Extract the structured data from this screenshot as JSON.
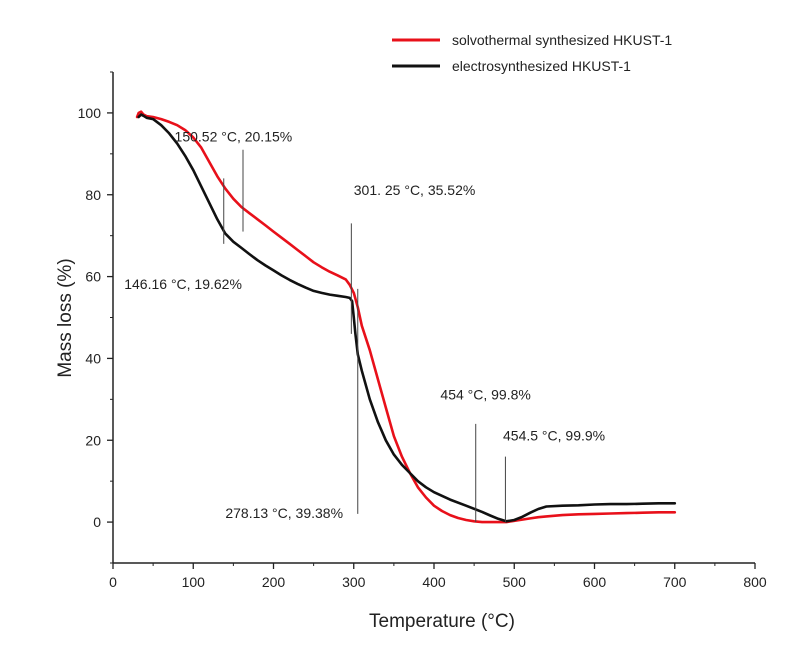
{
  "chart_data": {
    "type": "line",
    "xlabel": "Temperature  (°C)",
    "ylabel": "Mass loss (%)",
    "xlim": [
      0,
      800
    ],
    "ylim": [
      -10,
      110
    ],
    "xticks": [
      0,
      100,
      200,
      300,
      400,
      500,
      600,
      700,
      800
    ],
    "yticks": [
      0,
      20,
      40,
      60,
      80,
      100
    ],
    "grid": false,
    "legend_position": "top-right",
    "series": [
      {
        "name": "solvothermal synthesized HKUST-1",
        "color": "#e8101a",
        "points": [
          [
            30,
            99
          ],
          [
            32,
            100
          ],
          [
            35,
            100.3
          ],
          [
            38,
            99.6
          ],
          [
            42,
            99.2
          ],
          [
            50,
            99
          ],
          [
            60,
            98.5
          ],
          [
            70,
            97.8
          ],
          [
            80,
            97
          ],
          [
            90,
            95.8
          ],
          [
            100,
            94
          ],
          [
            110,
            91.5
          ],
          [
            120,
            88
          ],
          [
            130,
            84.5
          ],
          [
            140,
            81.5
          ],
          [
            150,
            79
          ],
          [
            160,
            77
          ],
          [
            170,
            75.5
          ],
          [
            180,
            74
          ],
          [
            190,
            72.5
          ],
          [
            200,
            71
          ],
          [
            210,
            69.5
          ],
          [
            220,
            68
          ],
          [
            230,
            66.5
          ],
          [
            240,
            65
          ],
          [
            250,
            63.5
          ],
          [
            260,
            62.3
          ],
          [
            270,
            61.2
          ],
          [
            280,
            60.3
          ],
          [
            290,
            59.3
          ],
          [
            295,
            58
          ],
          [
            300,
            56
          ],
          [
            305,
            52.5
          ],
          [
            310,
            48
          ],
          [
            320,
            42
          ],
          [
            330,
            35
          ],
          [
            340,
            28
          ],
          [
            350,
            21
          ],
          [
            360,
            16
          ],
          [
            370,
            12
          ],
          [
            380,
            8.5
          ],
          [
            390,
            6
          ],
          [
            400,
            4
          ],
          [
            410,
            2.7
          ],
          [
            420,
            1.7
          ],
          [
            430,
            1
          ],
          [
            440,
            0.5
          ],
          [
            450,
            0.2
          ],
          [
            460,
            0
          ],
          [
            470,
            0
          ],
          [
            480,
            0
          ],
          [
            490,
            0
          ],
          [
            500,
            0.3
          ],
          [
            510,
            0.6
          ],
          [
            520,
            0.9
          ],
          [
            530,
            1.2
          ],
          [
            540,
            1.4
          ],
          [
            560,
            1.7
          ],
          [
            580,
            1.9
          ],
          [
            600,
            2
          ],
          [
            620,
            2.1
          ],
          [
            640,
            2.2
          ],
          [
            660,
            2.3
          ],
          [
            680,
            2.4
          ],
          [
            700,
            2.4
          ]
        ]
      },
      {
        "name": "electrosynthesized HKUST-1",
        "color": "#111111",
        "points": [
          [
            32,
            99
          ],
          [
            35,
            99.6
          ],
          [
            38,
            99.3
          ],
          [
            42,
            98.8
          ],
          [
            50,
            98.5
          ],
          [
            60,
            97
          ],
          [
            70,
            95
          ],
          [
            80,
            92.5
          ],
          [
            90,
            89.5
          ],
          [
            100,
            86
          ],
          [
            110,
            82
          ],
          [
            120,
            78
          ],
          [
            130,
            74
          ],
          [
            140,
            70.5
          ],
          [
            150,
            68.5
          ],
          [
            160,
            67
          ],
          [
            170,
            65.5
          ],
          [
            180,
            64
          ],
          [
            190,
            62.7
          ],
          [
            200,
            61.5
          ],
          [
            210,
            60.3
          ],
          [
            220,
            59.2
          ],
          [
            230,
            58.2
          ],
          [
            240,
            57.3
          ],
          [
            250,
            56.5
          ],
          [
            260,
            56
          ],
          [
            270,
            55.6
          ],
          [
            280,
            55.3
          ],
          [
            290,
            55
          ],
          [
            295,
            54.8
          ],
          [
            298,
            54
          ],
          [
            300,
            50
          ],
          [
            302,
            46
          ],
          [
            305,
            41
          ],
          [
            310,
            37
          ],
          [
            320,
            30
          ],
          [
            330,
            24.5
          ],
          [
            340,
            20
          ],
          [
            350,
            16.5
          ],
          [
            360,
            14
          ],
          [
            370,
            12
          ],
          [
            380,
            10
          ],
          [
            390,
            8.5
          ],
          [
            400,
            7.3
          ],
          [
            420,
            5.5
          ],
          [
            440,
            4
          ],
          [
            460,
            2.5
          ],
          [
            470,
            1.6
          ],
          [
            480,
            0.8
          ],
          [
            490,
            0.2
          ],
          [
            500,
            0.5
          ],
          [
            510,
            1.3
          ],
          [
            520,
            2.3
          ],
          [
            530,
            3.2
          ],
          [
            540,
            3.8
          ],
          [
            560,
            4
          ],
          [
            580,
            4.1
          ],
          [
            600,
            4.3
          ],
          [
            620,
            4.4
          ],
          [
            640,
            4.4
          ],
          [
            660,
            4.5
          ],
          [
            680,
            4.6
          ],
          [
            700,
            4.6
          ]
        ]
      }
    ],
    "annotations": [
      {
        "text": "150.52 °C, 20.15%",
        "line_x": 162,
        "line_y": [
          71,
          91
        ],
        "label_x": 150,
        "label_y": 93,
        "anchor": "middle"
      },
      {
        "text": "146.16 °C, 19.62%",
        "line_x": 138,
        "line_y": [
          68,
          84
        ],
        "label_x": 14,
        "label_y": 57,
        "anchor": "start"
      },
      {
        "text": "301. 25 °C, 35.52%",
        "line_x": 297,
        "line_y": [
          46,
          73
        ],
        "label_x": 300,
        "label_y": 80,
        "anchor": "start"
      },
      {
        "text": "278.13 °C, 39.38%",
        "line_x": 305,
        "line_y": [
          2,
          57
        ],
        "label_x": 140,
        "label_y": 1,
        "anchor": "start"
      },
      {
        "text": "454 °C, 99.8%",
        "line_x": 452,
        "line_y": [
          0,
          24
        ],
        "label_x": 408,
        "label_y": 30,
        "anchor": "start"
      },
      {
        "text": "454.5 °C, 99.9%",
        "line_x": 489,
        "line_y": [
          0,
          16
        ],
        "label_x": 486,
        "label_y": 20,
        "anchor": "start"
      }
    ]
  }
}
